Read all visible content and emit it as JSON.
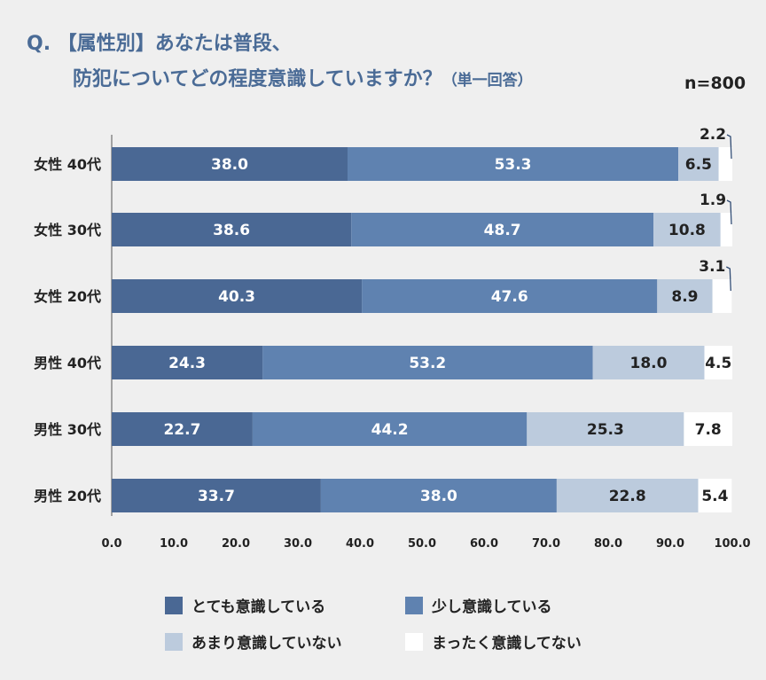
{
  "title": {
    "line1": "Q. 【属性別】あなたは普段、",
    "line2": "防犯についてどの程度意識していますか？",
    "note": "（単一回答）"
  },
  "n_label": "n=800",
  "colors": {
    "very": "#4a6894",
    "somewhat": "#5f82b0",
    "not_much": "#bccbdd",
    "not_at_all": "#ffffff",
    "title": "#4a6b96"
  },
  "chart_data": {
    "type": "bar",
    "orientation": "horizontal",
    "stacked": true,
    "categories": [
      "女性 40代",
      "女性 30代",
      "女性 20代",
      "男性 40代",
      "男性 30代",
      "男性 20代"
    ],
    "series": [
      {
        "name": "とても意識している",
        "values": [
          38.0,
          38.6,
          40.3,
          24.3,
          22.7,
          33.7
        ]
      },
      {
        "name": "少し意識している",
        "values": [
          53.3,
          48.7,
          47.6,
          53.2,
          44.2,
          38.0
        ]
      },
      {
        "name": "あまり意識していない",
        "values": [
          6.5,
          10.8,
          8.9,
          18.0,
          25.3,
          22.8
        ]
      },
      {
        "name": "まったく意識してない",
        "values": [
          2.2,
          1.9,
          3.1,
          4.5,
          7.8,
          5.4
        ]
      }
    ],
    "xlim": [
      0,
      100
    ],
    "xticks": [
      "0.0",
      "10.0",
      "20.0",
      "30.0",
      "40.0",
      "50.0",
      "60.0",
      "70.0",
      "80.0",
      "90.0",
      "100.0"
    ],
    "legend_position": "bottom",
    "grid": false
  }
}
